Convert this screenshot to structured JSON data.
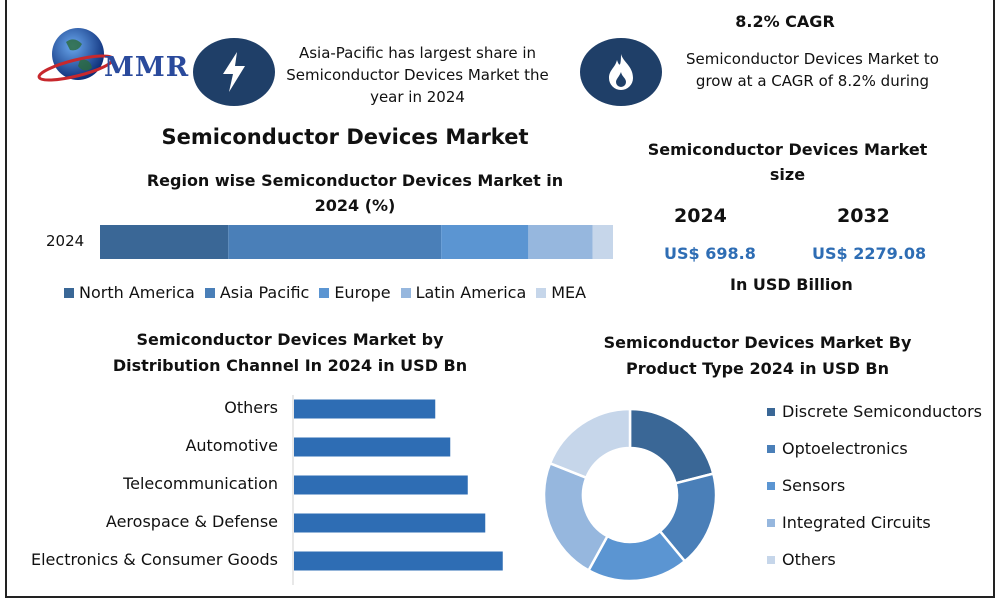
{
  "colors": {
    "icon_bg": "#1f3f68",
    "accent_blue": "#2e6db4",
    "logo_text": "#2a4a9c"
  },
  "logo": {
    "text": "MMR",
    "icon": "globe-logo-icon"
  },
  "header": {
    "left_icon": "lightning-icon",
    "left_text": "Asia-Pacific has largest share in Semiconductor Devices Market the year in 2024",
    "right_icon": "flame-icon",
    "cagr_title": "8.2% CAGR",
    "cagr_text": "Semiconductor Devices Market to grow at a CAGR of 8.2% during"
  },
  "main_title": "Semiconductor Devices Market",
  "market_size": {
    "title": "Semiconductor Devices Market size",
    "years": [
      "2024",
      "2032"
    ],
    "values": [
      "US$ 698.8",
      "US$ 2279.08"
    ],
    "unit": "In USD Billion"
  },
  "chart_data": [
    {
      "type": "bar",
      "orientation": "horizontal-stacked-100",
      "title": "Region wise Semiconductor Devices Market in 2024 (%)",
      "categories": [
        "2024"
      ],
      "series": [
        {
          "name": "North America",
          "values": [
            25
          ],
          "color": "#3a6796"
        },
        {
          "name": "Asia Pacific",
          "values": [
            41.5
          ],
          "color": "#4a7fb8"
        },
        {
          "name": "Europe",
          "values": [
            17
          ],
          "color": "#5b95d2"
        },
        {
          "name": "Latin America",
          "values": [
            12.5
          ],
          "color": "#96b7de"
        },
        {
          "name": "MEA",
          "values": [
            4
          ],
          "color": "#c6d6ea"
        }
      ],
      "xlim": [
        0,
        100
      ],
      "legend": "bottom"
    },
    {
      "type": "bar",
      "orientation": "horizontal",
      "title": "Semiconductor Devices Market by Distribution Channel In 2024 in USD Bn",
      "categories": [
        "Others",
        "Automotive",
        "Telecommunication",
        "Aerospace & Defense",
        "Electronics & Consumer Goods"
      ],
      "values": [
        113,
        125,
        139,
        153,
        167
      ],
      "xlim": [
        0,
        200
      ],
      "color": "#2e6db4"
    },
    {
      "type": "pie",
      "variant": "donut",
      "title": "Semiconductor Devices Market By Product Type 2024 in USD Bn",
      "labels": [
        "Discrete Semiconductors",
        "Optoelectronics",
        "Sensors",
        "Integrated Circuits",
        "Others"
      ],
      "values": [
        21,
        18,
        19,
        23,
        19
      ],
      "colors": [
        "#3a6796",
        "#4a7fb8",
        "#5b95d2",
        "#96b7de",
        "#c6d6ea"
      ],
      "legend": "right"
    }
  ]
}
